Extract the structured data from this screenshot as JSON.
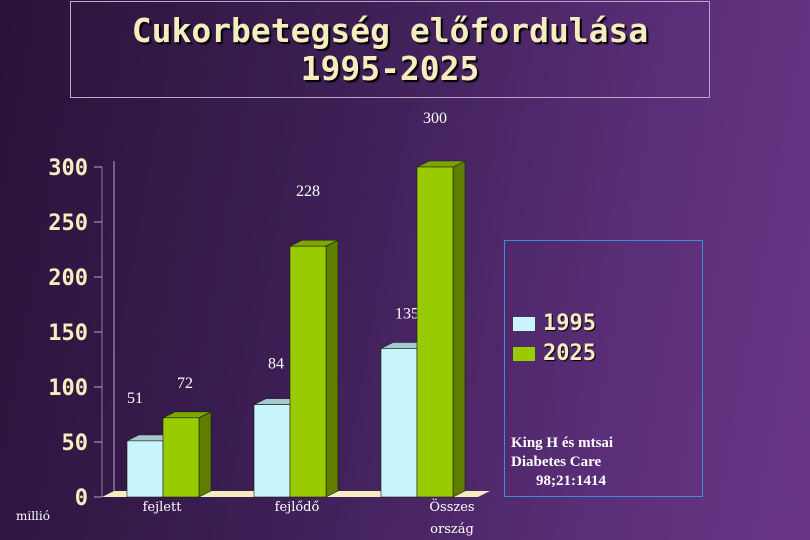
{
  "title": {
    "line1": "Cukorbetegség előfordulása",
    "line2": "1995-2025"
  },
  "unit_label": "millió",
  "source": {
    "line1": "King H és mtsai",
    "line2": "Diabetes Care",
    "line3": "98;21:1414"
  },
  "colors": {
    "series_1995": "#c8f5fb",
    "series_2025": "#99cc00",
    "axis_text": "#f5ecbf",
    "legend_border": "#3a8ed6"
  },
  "chart_data": {
    "type": "bar",
    "title": "Cukorbetegség előfordulása 1995-2025",
    "categories": [
      "fejlett",
      "fejlődő",
      "Összes ország"
    ],
    "series": [
      {
        "name": "1995",
        "values": [
          51,
          84,
          135
        ]
      },
      {
        "name": "2025",
        "values": [
          72,
          228,
          300
        ]
      }
    ],
    "ylim": [
      0,
      300
    ],
    "yticks": [
      "0",
      "50",
      "100",
      "150",
      "200",
      "250",
      "300"
    ],
    "ylabel": "millió",
    "xlabel": "",
    "grid": false,
    "legend": "right",
    "style": "3d"
  }
}
